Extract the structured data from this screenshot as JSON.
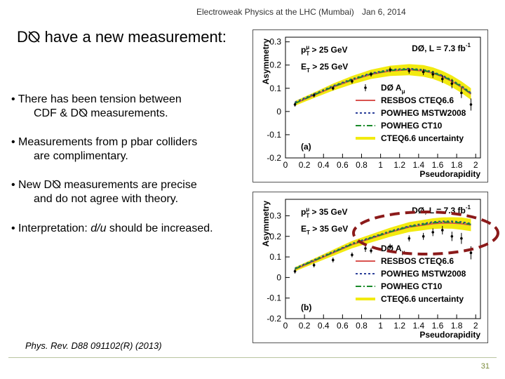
{
  "header": {
    "left": "Electroweak Physics at the LHC (Mumbai)",
    "right": "Jan 6, 2014"
  },
  "slide": {
    "title_pre": "D",
    "title_symbol": "⦰",
    "title_post": " have a new measurement:",
    "bullets": [
      {
        "line1": "• There has been tension between",
        "line2": "CDF & D⦰ measurements."
      },
      {
        "line1": "• Measurements from  p pbar  colliders",
        "line2": "are complimentary."
      },
      {
        "line1": "• New D⦰ measurements are precise",
        "line2": "and do not agree with theory."
      }
    ],
    "bullet4_pre": "• Interpretation:  ",
    "bullet4_em": "d/u",
    "bullet4_post": "  should be increased.",
    "reference": "Phys. Rev. D88 091102(R) (2013)",
    "page_number": "31"
  },
  "colors": {
    "data": "#000000",
    "resbos": "#d9534f",
    "mstw": "#2b3f9a",
    "ct10": "#1a8a2a",
    "band": "#f2ea10",
    "annotation": "#8b1a1a"
  },
  "chart_data": [
    {
      "type": "line",
      "panel_label": "(a)",
      "cuts": [
        "p",
        "T",
        "μ",
        " > 25 GeV",
        "E",
        "T",
        " > 25 GeV"
      ],
      "experiment": "DØ, L = 7.3 fb",
      "experiment_sup": "-1",
      "xlabel": "Pseudorapidity",
      "ylabel": "Asymmetry",
      "xlim": [
        0,
        2.05
      ],
      "ylim": [
        -0.2,
        0.32
      ],
      "xticks": [
        "0",
        "0.2",
        "0.4",
        "0.6",
        "0.8",
        "1",
        "1.2",
        "1.4",
        "1.6",
        "1.8",
        "2"
      ],
      "xtick_values": [
        0,
        0.2,
        0.4,
        0.6,
        0.8,
        1.0,
        1.2,
        1.4,
        1.6,
        1.8,
        2.0
      ],
      "yticks": [
        "-0.2",
        "-0.1",
        "0",
        "0.1",
        "0.2",
        "0.3"
      ],
      "ytick_values": [
        -0.2,
        -0.1,
        0,
        0.1,
        0.2,
        0.3
      ],
      "x": [
        0.1,
        0.3,
        0.5,
        0.7,
        0.9,
        1.1,
        1.3,
        1.45,
        1.55,
        1.65,
        1.75,
        1.85,
        1.95
      ],
      "series": [
        {
          "name": "DØ A",
          "name_sub": "μ",
          "style": "data",
          "values": [
            0.03,
            0.07,
            0.1,
            0.13,
            0.16,
            0.18,
            0.175,
            0.17,
            0.16,
            0.14,
            0.12,
            0.08,
            0.03
          ],
          "errors": [
            0.003,
            0.003,
            0.003,
            0.004,
            0.004,
            0.005,
            0.006,
            0.007,
            0.009,
            0.011,
            0.014,
            0.016,
            0.02
          ]
        },
        {
          "name": "RESBOS CTEQ6.6",
          "style": "solid",
          "values": [
            0.035,
            0.07,
            0.105,
            0.135,
            0.16,
            0.175,
            0.18,
            0.175,
            0.165,
            0.15,
            0.13,
            0.105,
            0.075
          ]
        },
        {
          "name": "POWHEG MSTW2008",
          "style": "dotted",
          "values": [
            0.04,
            0.075,
            0.11,
            0.14,
            0.165,
            0.18,
            0.185,
            0.18,
            0.17,
            0.155,
            0.135,
            0.11,
            0.08
          ]
        },
        {
          "name": "POWHEG CT10",
          "style": "dashdot",
          "values": [
            0.035,
            0.072,
            0.107,
            0.137,
            0.162,
            0.177,
            0.182,
            0.177,
            0.167,
            0.152,
            0.132,
            0.107,
            0.077
          ]
        },
        {
          "name": "CTEQ6.6 uncertainty",
          "style": "band",
          "values": [
            0.035,
            0.07,
            0.105,
            0.135,
            0.16,
            0.175,
            0.18,
            0.175,
            0.165,
            0.15,
            0.13,
            0.105,
            0.075
          ],
          "band_halfwidth": [
            0.01,
            0.012,
            0.015,
            0.018,
            0.02,
            0.022,
            0.024,
            0.025,
            0.025,
            0.025,
            0.025,
            0.025,
            0.025
          ]
        }
      ]
    },
    {
      "type": "line",
      "panel_label": "(b)",
      "cuts": [
        "p",
        "T",
        "μ",
        " > 35 GeV",
        "E",
        "T",
        " > 35 GeV"
      ],
      "experiment": "DØ, L = 7.3 fb",
      "experiment_sup": "-1",
      "xlabel": "Pseudorapidity",
      "ylabel": "Asymmetry",
      "xlim": [
        0,
        2.05
      ],
      "ylim": [
        -0.2,
        0.38
      ],
      "xticks": [
        "0",
        "0.2",
        "0.4",
        "0.6",
        "0.8",
        "1",
        "1.2",
        "1.4",
        "1.6",
        "1.8",
        "2"
      ],
      "xtick_values": [
        0,
        0.2,
        0.4,
        0.6,
        0.8,
        1.0,
        1.2,
        1.4,
        1.6,
        1.8,
        2.0
      ],
      "yticks": [
        "-0.2",
        "-0.1",
        "0",
        "0.1",
        "0.2",
        "0.3"
      ],
      "ytick_values": [
        -0.2,
        -0.1,
        0,
        0.1,
        0.2,
        0.3
      ],
      "x": [
        0.1,
        0.3,
        0.5,
        0.7,
        0.9,
        1.1,
        1.3,
        1.45,
        1.55,
        1.65,
        1.75,
        1.85,
        1.95
      ],
      "series": [
        {
          "name": "DØ A",
          "name_sub": "μ",
          "style": "data",
          "values": [
            0.03,
            0.06,
            0.085,
            0.11,
            0.13,
            0.15,
            0.19,
            0.2,
            0.22,
            0.23,
            0.2,
            0.19,
            0.12
          ],
          "errors": [
            0.004,
            0.004,
            0.005,
            0.005,
            0.006,
            0.007,
            0.008,
            0.01,
            0.012,
            0.014,
            0.016,
            0.02,
            0.025
          ]
        },
        {
          "name": "RESBOS CTEQ6.6",
          "style": "solid",
          "values": [
            0.04,
            0.08,
            0.12,
            0.16,
            0.19,
            0.22,
            0.245,
            0.255,
            0.262,
            0.265,
            0.265,
            0.262,
            0.255
          ]
        },
        {
          "name": "POWHEG MSTW2008",
          "style": "dotted",
          "values": [
            0.045,
            0.085,
            0.125,
            0.165,
            0.195,
            0.225,
            0.25,
            0.262,
            0.27,
            0.273,
            0.273,
            0.27,
            0.262
          ]
        },
        {
          "name": "POWHEG CT10",
          "style": "dashdot",
          "values": [
            0.042,
            0.082,
            0.122,
            0.162,
            0.192,
            0.222,
            0.247,
            0.258,
            0.266,
            0.269,
            0.269,
            0.266,
            0.258
          ]
        },
        {
          "name": "CTEQ6.6 uncertainty",
          "style": "band",
          "values": [
            0.04,
            0.08,
            0.12,
            0.16,
            0.19,
            0.22,
            0.245,
            0.255,
            0.262,
            0.265,
            0.265,
            0.262,
            0.255
          ],
          "band_halfwidth": [
            0.01,
            0.012,
            0.015,
            0.018,
            0.02,
            0.022,
            0.024,
            0.025,
            0.026,
            0.027,
            0.028,
            0.03,
            0.03
          ]
        }
      ]
    }
  ]
}
